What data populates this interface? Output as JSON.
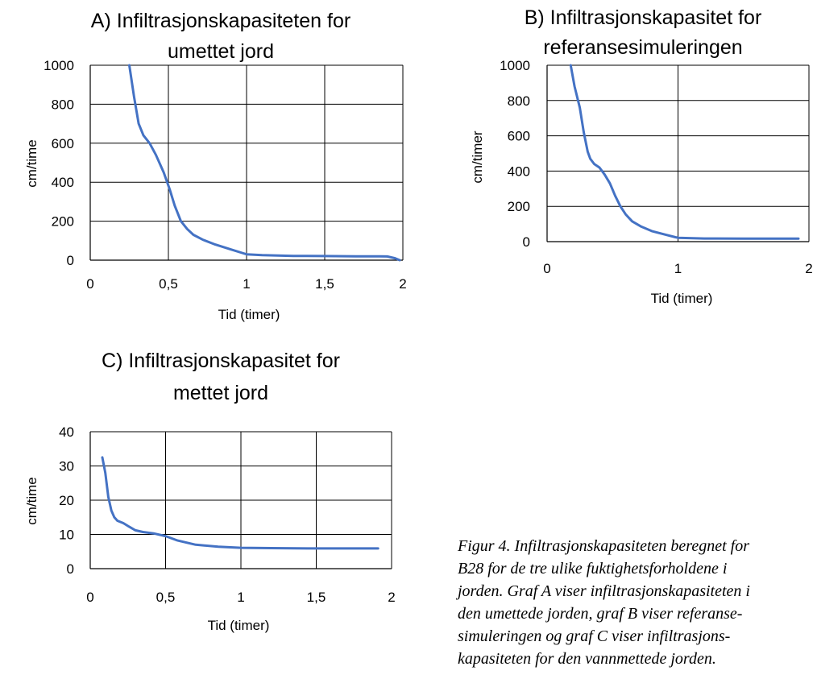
{
  "chart_data": [
    {
      "type": "line",
      "title": [
        "A) Infiltrasjonskapasiteten for",
        "umettet jord"
      ],
      "xlabel": "Tid (timer)",
      "ylabel": "cm/time",
      "xlim": [
        0,
        2
      ],
      "ylim": [
        0,
        1000
      ],
      "xticks": [
        0,
        0.5,
        1,
        1.5,
        2
      ],
      "xtick_labels": [
        "0",
        "0,5",
        "1",
        "1,5",
        "2"
      ],
      "yticks": [
        0,
        200,
        400,
        600,
        800,
        1000
      ],
      "ytick_labels": [
        "0",
        "200",
        "400",
        "600",
        "800",
        "1000"
      ],
      "grid": true,
      "series": [
        {
          "color": "#4472C4",
          "x": [
            0.25,
            0.28,
            0.31,
            0.34,
            0.38,
            0.42,
            0.47,
            0.51,
            0.54,
            0.58,
            0.62,
            0.66,
            0.72,
            0.8,
            0.9,
            0.98,
            1.0,
            1.1,
            1.3,
            1.5,
            1.7,
            1.85,
            1.9,
            1.95,
            1.98
          ],
          "y": [
            1000,
            840,
            700,
            640,
            600,
            540,
            450,
            360,
            280,
            200,
            160,
            130,
            105,
            80,
            55,
            35,
            30,
            26,
            22,
            21,
            20,
            20,
            19,
            10,
            0
          ]
        }
      ]
    },
    {
      "type": "line",
      "title": [
        "B) Infiltrasjonskapasitet for",
        "referansesimuleringen"
      ],
      "xlabel": "Tid (timer)",
      "ylabel": "cm/timer",
      "xlim": [
        0,
        2
      ],
      "ylim": [
        0,
        1000
      ],
      "xticks": [
        0,
        1,
        2
      ],
      "xtick_labels": [
        "0",
        "1",
        "2"
      ],
      "yticks": [
        0,
        200,
        400,
        600,
        800,
        1000
      ],
      "ytick_labels": [
        "0",
        "200",
        "400",
        "600",
        "800",
        "1000"
      ],
      "grid": true,
      "series": [
        {
          "color": "#4472C4",
          "x": [
            0.18,
            0.21,
            0.25,
            0.28,
            0.31,
            0.33,
            0.36,
            0.4,
            0.44,
            0.48,
            0.52,
            0.56,
            0.6,
            0.65,
            0.72,
            0.8,
            0.9,
            0.98,
            1.0,
            1.2,
            1.5,
            1.8,
            1.92
          ],
          "y": [
            1000,
            880,
            760,
            620,
            510,
            470,
            440,
            420,
            380,
            330,
            260,
            200,
            155,
            115,
            85,
            60,
            40,
            25,
            22,
            18,
            17,
            17,
            17
          ]
        }
      ]
    },
    {
      "type": "line",
      "title": [
        "C) Infiltrasjonskapasitet for",
        "mettet jord"
      ],
      "xlabel": "Tid (timer)",
      "ylabel": "cm/time",
      "xlim": [
        0,
        2
      ],
      "ylim": [
        0,
        40
      ],
      "xticks": [
        0,
        0.5,
        1,
        1.5,
        2
      ],
      "xtick_labels": [
        "0",
        "0,5",
        "1",
        "1,5",
        "2"
      ],
      "yticks": [
        0,
        10,
        20,
        30,
        40
      ],
      "ytick_labels": [
        "0",
        "10",
        "20",
        "30",
        "40"
      ],
      "grid": true,
      "series": [
        {
          "color": "#4472C4",
          "x": [
            0.08,
            0.1,
            0.12,
            0.14,
            0.16,
            0.18,
            0.22,
            0.26,
            0.3,
            0.35,
            0.42,
            0.5,
            0.58,
            0.7,
            0.85,
            1.0,
            1.2,
            1.5,
            1.7,
            1.91
          ],
          "y": [
            32.5,
            28,
            21,
            17,
            15,
            14,
            13.3,
            12.2,
            11.2,
            10.7,
            10.3,
            9.5,
            8.2,
            7.0,
            6.4,
            6.1,
            6.0,
            5.9,
            5.9,
            5.9
          ]
        }
      ]
    }
  ],
  "caption": [
    "Figur 4. Infiltrasjonskapasiteten beregnet for",
    "B28 for de tre ulike fuktighetsforholdene i",
    "jorden. Graf A viser infiltrasjonskapasiteten i",
    "den umettede jorden, graf B viser referanse-",
    "simuleringen og graf C viser infiltrasjons-",
    "kapasiteten for den vannmettede jorden."
  ]
}
